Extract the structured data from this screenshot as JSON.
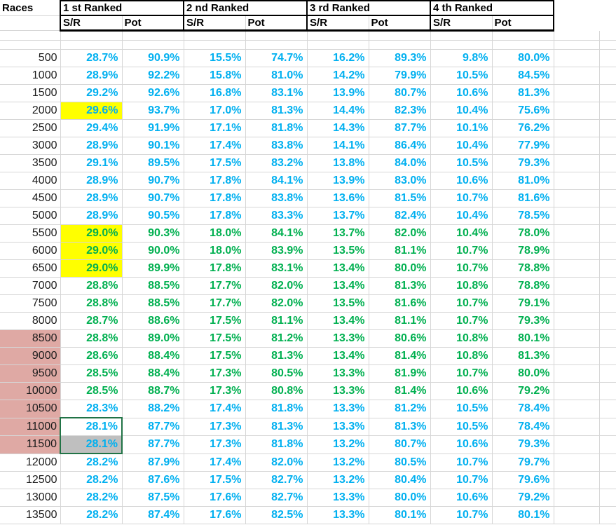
{
  "colors": {
    "value_blue": "#00B0F0",
    "value_green": "#00B050",
    "highlight_yellow": "#FFFF00",
    "races_pink": "#DFA9A4",
    "selection_gray": "#BFBFBF",
    "selection_border_green": "#217346",
    "header_text": "#000000"
  },
  "table": {
    "races_header": "Races",
    "groups": [
      {
        "label": "1 st Ranked"
      },
      {
        "label": "2 nd Ranked"
      },
      {
        "label": "3 rd Ranked"
      },
      {
        "label": "4 th Ranked"
      }
    ],
    "sub_headers": [
      "S/R",
      "Pot"
    ],
    "selection": {
      "start_row": "11000",
      "end_row": "11500",
      "column": "1st Ranked S/R",
      "active_cell_value": "28.1%"
    },
    "rows": [
      {
        "races": "500",
        "cells": [
          "28.7%",
          "90.9%",
          "15.5%",
          "74.7%",
          "16.2%",
          "89.3%",
          "9.8%",
          "80.0%"
        ],
        "color": "blue"
      },
      {
        "races": "1000",
        "cells": [
          "28.9%",
          "92.2%",
          "15.8%",
          "81.0%",
          "14.2%",
          "79.9%",
          "10.5%",
          "84.5%"
        ],
        "color": "blue"
      },
      {
        "races": "1500",
        "cells": [
          "29.2%",
          "92.6%",
          "16.8%",
          "83.1%",
          "13.9%",
          "80.7%",
          "10.6%",
          "81.3%"
        ],
        "color": "blue"
      },
      {
        "races": "2000",
        "cells": [
          "29.6%",
          "93.7%",
          "17.0%",
          "81.3%",
          "14.4%",
          "82.3%",
          "10.4%",
          "75.6%"
        ],
        "color": "blue",
        "sr_fill": "yellow"
      },
      {
        "races": "2500",
        "cells": [
          "29.4%",
          "91.9%",
          "17.1%",
          "81.8%",
          "14.3%",
          "87.7%",
          "10.1%",
          "76.2%"
        ],
        "color": "blue"
      },
      {
        "races": "3000",
        "cells": [
          "28.9%",
          "90.1%",
          "17.4%",
          "83.8%",
          "14.1%",
          "86.4%",
          "10.4%",
          "77.9%"
        ],
        "color": "blue"
      },
      {
        "races": "3500",
        "cells": [
          "29.1%",
          "89.5%",
          "17.5%",
          "83.2%",
          "13.8%",
          "84.0%",
          "10.5%",
          "79.3%"
        ],
        "color": "blue"
      },
      {
        "races": "4000",
        "cells": [
          "28.9%",
          "90.7%",
          "17.8%",
          "84.1%",
          "13.9%",
          "83.0%",
          "10.6%",
          "81.0%"
        ],
        "color": "blue"
      },
      {
        "races": "4500",
        "cells": [
          "28.9%",
          "90.7%",
          "17.8%",
          "83.8%",
          "13.6%",
          "81.5%",
          "10.7%",
          "81.6%"
        ],
        "color": "blue"
      },
      {
        "races": "5000",
        "cells": [
          "28.9%",
          "90.5%",
          "17.8%",
          "83.3%",
          "13.7%",
          "82.4%",
          "10.4%",
          "78.5%"
        ],
        "color": "blue"
      },
      {
        "races": "5500",
        "cells": [
          "29.0%",
          "90.3%",
          "18.0%",
          "84.1%",
          "13.7%",
          "82.0%",
          "10.4%",
          "78.0%"
        ],
        "color": "green",
        "sr_fill": "yellow"
      },
      {
        "races": "6000",
        "cells": [
          "29.0%",
          "90.0%",
          "18.0%",
          "83.9%",
          "13.5%",
          "81.1%",
          "10.7%",
          "78.9%"
        ],
        "color": "green",
        "sr_fill": "yellow"
      },
      {
        "races": "6500",
        "cells": [
          "29.0%",
          "89.9%",
          "17.8%",
          "83.1%",
          "13.4%",
          "80.0%",
          "10.7%",
          "78.8%"
        ],
        "color": "green",
        "sr_fill": "yellow"
      },
      {
        "races": "7000",
        "cells": [
          "28.8%",
          "88.5%",
          "17.7%",
          "82.0%",
          "13.4%",
          "81.3%",
          "10.8%",
          "78.8%"
        ],
        "color": "green"
      },
      {
        "races": "7500",
        "cells": [
          "28.8%",
          "88.5%",
          "17.7%",
          "82.0%",
          "13.5%",
          "81.6%",
          "10.7%",
          "79.1%"
        ],
        "color": "green"
      },
      {
        "races": "8000",
        "cells": [
          "28.7%",
          "88.6%",
          "17.5%",
          "81.1%",
          "13.4%",
          "81.1%",
          "10.7%",
          "79.3%"
        ],
        "color": "green"
      },
      {
        "races": "8500",
        "cells": [
          "28.8%",
          "89.0%",
          "17.5%",
          "81.2%",
          "13.3%",
          "80.6%",
          "10.8%",
          "80.1%"
        ],
        "color": "green",
        "races_fill": "pink"
      },
      {
        "races": "9000",
        "cells": [
          "28.6%",
          "88.4%",
          "17.5%",
          "81.3%",
          "13.4%",
          "81.4%",
          "10.8%",
          "81.3%"
        ],
        "color": "green",
        "races_fill": "pink"
      },
      {
        "races": "9500",
        "cells": [
          "28.5%",
          "88.4%",
          "17.3%",
          "80.5%",
          "13.3%",
          "81.9%",
          "10.7%",
          "80.0%"
        ],
        "color": "green",
        "races_fill": "pink"
      },
      {
        "races": "10000",
        "cells": [
          "28.5%",
          "88.7%",
          "17.3%",
          "80.8%",
          "13.3%",
          "81.4%",
          "10.6%",
          "79.2%"
        ],
        "color": "green",
        "races_fill": "pink"
      },
      {
        "races": "10500",
        "cells": [
          "28.3%",
          "88.2%",
          "17.4%",
          "81.8%",
          "13.3%",
          "81.2%",
          "10.5%",
          "78.4%"
        ],
        "color": "blue",
        "races_fill": "pink"
      },
      {
        "races": "11000",
        "cells": [
          "28.1%",
          "87.7%",
          "17.3%",
          "81.3%",
          "13.3%",
          "81.3%",
          "10.5%",
          "78.4%"
        ],
        "color": "blue",
        "races_fill": "pink",
        "selection": "top"
      },
      {
        "races": "11500",
        "cells": [
          "28.1%",
          "87.7%",
          "17.3%",
          "81.8%",
          "13.2%",
          "80.7%",
          "10.6%",
          "79.3%"
        ],
        "color": "blue",
        "races_fill": "pink",
        "selection": "bottom",
        "sr_fill": "gray"
      },
      {
        "races": "12000",
        "cells": [
          "28.2%",
          "87.9%",
          "17.4%",
          "82.0%",
          "13.2%",
          "80.5%",
          "10.7%",
          "79.7%"
        ],
        "color": "blue"
      },
      {
        "races": "12500",
        "cells": [
          "28.2%",
          "87.6%",
          "17.5%",
          "82.7%",
          "13.2%",
          "80.4%",
          "10.7%",
          "79.6%"
        ],
        "color": "blue"
      },
      {
        "races": "13000",
        "cells": [
          "28.2%",
          "87.5%",
          "17.6%",
          "82.7%",
          "13.3%",
          "80.0%",
          "10.6%",
          "79.2%"
        ],
        "color": "blue"
      },
      {
        "races": "13500",
        "cells": [
          "28.2%",
          "87.4%",
          "17.6%",
          "82.5%",
          "13.3%",
          "80.1%",
          "10.7%",
          "80.1%"
        ],
        "color": "blue"
      }
    ]
  }
}
